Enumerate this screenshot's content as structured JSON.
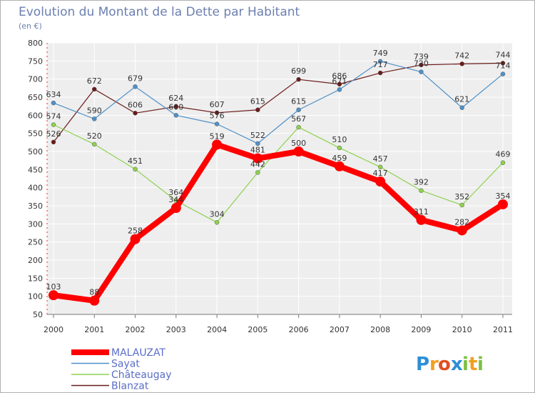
{
  "chart_data": {
    "type": "line",
    "title": "Evolution du Montant de la Dette par Habitant",
    "subtitle": "(en €)",
    "x": [
      "2000",
      "2001",
      "2002",
      "2003",
      "2004",
      "2005",
      "2006",
      "2007",
      "2008",
      "2009",
      "2010",
      "2011"
    ],
    "ylim": [
      50,
      800
    ],
    "yticks": [
      50,
      100,
      150,
      200,
      250,
      300,
      350,
      400,
      450,
      500,
      550,
      600,
      650,
      700,
      750,
      800
    ],
    "grid": true,
    "legend_position": "bottom-left",
    "series": [
      {
        "name": "MALAUZAT",
        "color": "#ff0000",
        "values": [
          103,
          88,
          258,
          344,
          519,
          481,
          500,
          459,
          417,
          311,
          282,
          354
        ]
      },
      {
        "name": "Sayat",
        "color": "#4f90c8",
        "values": [
          634,
          590,
          679,
          600,
          576,
          522,
          615,
          671,
          749,
          720,
          621,
          714
        ]
      },
      {
        "name": "Châteaugay",
        "color": "#8fd14f",
        "values": [
          574,
          520,
          451,
          364,
          304,
          442,
          567,
          510,
          457,
          392,
          352,
          469
        ]
      },
      {
        "name": "Blanzat",
        "color": "#6b1a1a",
        "values": [
          526,
          672,
          606,
          624,
          607,
          615,
          699,
          686,
          717,
          739,
          742,
          744
        ]
      }
    ]
  },
  "logo": {
    "letters": [
      {
        "ch": "P",
        "color": "#2c8fd6"
      },
      {
        "ch": "r",
        "color": "#f0a020"
      },
      {
        "ch": "o",
        "color": "#e05020"
      },
      {
        "ch": "x",
        "color": "#2c8fd6"
      },
      {
        "ch": "i",
        "color": "#7bc043"
      },
      {
        "ch": "t",
        "color": "#f0a020"
      },
      {
        "ch": "i",
        "color": "#7bc043"
      }
    ]
  }
}
